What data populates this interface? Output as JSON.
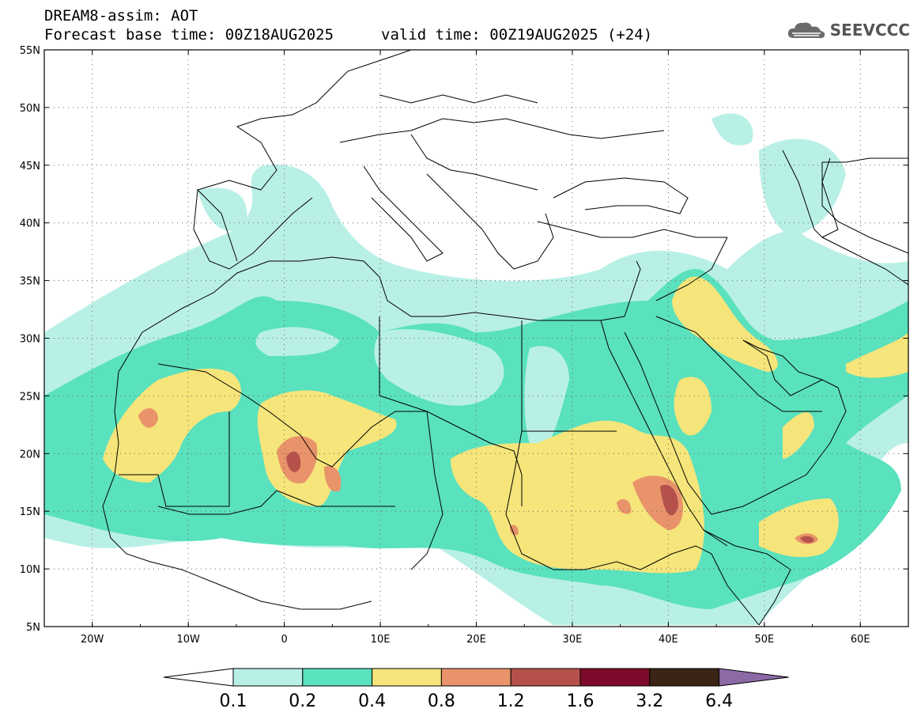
{
  "header": {
    "line1": "DREAM8-assim: AOT",
    "line2": "Forecast base time: 00Z18AUG2025",
    "line3": "valid time: 00Z19AUG2025 (+24)"
  },
  "logo": {
    "text": "SEEVCCC",
    "icon": "cloud-icon"
  },
  "map": {
    "lon_range": [
      -25,
      65
    ],
    "lat_range": [
      5,
      55
    ],
    "lat_ticks": [
      "5N",
      "10N",
      "15N",
      "20N",
      "25N",
      "30N",
      "35N",
      "40N",
      "45N",
      "50N",
      "55N"
    ],
    "lon_ticks": [
      "20W",
      "10W",
      "0",
      "10E",
      "20E",
      "30E",
      "40E",
      "50E",
      "60E"
    ]
  },
  "colorbar": {
    "levels": [
      "0.1",
      "0.2",
      "0.4",
      "0.8",
      "1.2",
      "1.6",
      "3.2",
      "6.4"
    ],
    "colors": [
      "#b9f0e6",
      "#5ae1be",
      "#f5e57a",
      "#e8936a",
      "#b5514a",
      "#7d0a2a",
      "#3a2416",
      "#8c6aa6"
    ],
    "under_color": "#ffffff"
  }
}
